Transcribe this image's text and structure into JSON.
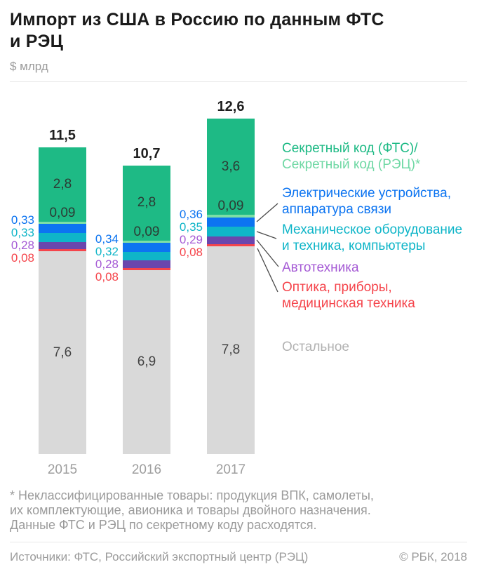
{
  "header": {
    "title_lines": [
      "Импорт из США в Россию по данным ФТС",
      "и РЭЦ"
    ],
    "units": "$ млрд"
  },
  "colors": {
    "title_text": "#1a1a1a",
    "muted_text": "#9b9b9b",
    "year_text": "#9e9e9e",
    "value_in_green": "#2c3b34",
    "value_in_gray": "#444444",
    "total_text": "#1f1f1f",
    "secret_fts": "#1eba85",
    "secret_rec": "#7cdfa6",
    "secret_rec_text": "#6fd8a4",
    "electric": "#0c74f1",
    "mech": "#0fb5c8",
    "auto": "#6a46ad",
    "auto_text": "#a55ad5",
    "optics": "#f5444b",
    "other": "#d9d9d9",
    "other_text": "#b2b2b2",
    "divider": "#e8e8e8",
    "connector": "#4a4a4a"
  },
  "chart_data": {
    "type": "bar",
    "stacked": true,
    "title": "Импорт из США в Россию по данным ФТС и РЭЦ",
    "ylabel": "$ млрд",
    "legend_position": "right",
    "grid": false,
    "categories": [
      "2015",
      "2016",
      "2017"
    ],
    "totals": [
      11.5,
      10.7,
      12.6
    ],
    "totals_display": [
      "11,5",
      "10,7",
      "12,6"
    ],
    "series": [
      {
        "key": "other",
        "name": "Остальное",
        "values": [
          7.6,
          6.9,
          7.8
        ],
        "labels": [
          "7,6",
          "6,9",
          "7,8"
        ]
      },
      {
        "key": "optics",
        "name": "Оптика, приборы, медицинская техника",
        "values": [
          0.08,
          0.08,
          0.08
        ],
        "labels": [
          "0,08",
          "0,08",
          "0,08"
        ]
      },
      {
        "key": "auto",
        "name": "Автотехника",
        "values": [
          0.28,
          0.28,
          0.29
        ],
        "labels": [
          "0,28",
          "0,28",
          "0,29"
        ]
      },
      {
        "key": "mech",
        "name": "Механическое оборудование и техника, компьютеры",
        "values": [
          0.33,
          0.32,
          0.35
        ],
        "labels": [
          "0,33",
          "0,32",
          "0,35"
        ]
      },
      {
        "key": "electric",
        "name": "Электрические устройства, аппаратура связи",
        "values": [
          0.33,
          0.34,
          0.36
        ],
        "labels": [
          "0,33",
          "0,34",
          "0,36"
        ]
      },
      {
        "key": "secret_rec",
        "name": "Секретный код (РЭЦ)*",
        "values": [
          0.09,
          0.09,
          0.09
        ],
        "labels": [
          "0,09",
          "0,09",
          "0,09"
        ]
      },
      {
        "key": "secret_fts",
        "name": "Секретный код (ФТС)",
        "values": [
          2.8,
          2.8,
          3.6
        ],
        "labels": [
          "2,8",
          "2,8",
          "3,6"
        ]
      }
    ]
  },
  "legend": {
    "items": [
      {
        "id": "secret-code",
        "lines": [
          {
            "text": "Секретный код (ФТС)/",
            "color": "secret_fts"
          },
          {
            "text": "Секретный код (РЭЦ)*",
            "color": "secret_rec_text"
          }
        ]
      },
      {
        "id": "electric",
        "lines": [
          {
            "text": "Электрические устройства,",
            "color": "electric"
          },
          {
            "text": "аппаратура связи",
            "color": "electric"
          }
        ]
      },
      {
        "id": "mech",
        "lines": [
          {
            "text": "Механическое оборудование",
            "color": "mech"
          },
          {
            "text": "и техника, компьютеры",
            "color": "mech"
          }
        ]
      },
      {
        "id": "auto",
        "lines": [
          {
            "text": "Автотехника",
            "color": "auto_text"
          }
        ]
      },
      {
        "id": "optics",
        "lines": [
          {
            "text": "Оптика, приборы,",
            "color": "optics"
          },
          {
            "text": "медицинская техника",
            "color": "optics"
          }
        ]
      },
      {
        "id": "other",
        "lines": [
          {
            "text": "Остальное",
            "color": "other_text"
          }
        ]
      }
    ]
  },
  "footnote": {
    "lines": [
      "* Неклассифицированные товары: продукция ВПК, самолеты,",
      "их комплектующие, авионика и товары двойного назначения.",
      "Данные ФТС и РЭЦ по секретному коду расходятся."
    ]
  },
  "footer": {
    "sources": "Источники: ФТС, Российский экспортный центр (РЭЦ)",
    "copyright": "© РБК, 2018"
  }
}
